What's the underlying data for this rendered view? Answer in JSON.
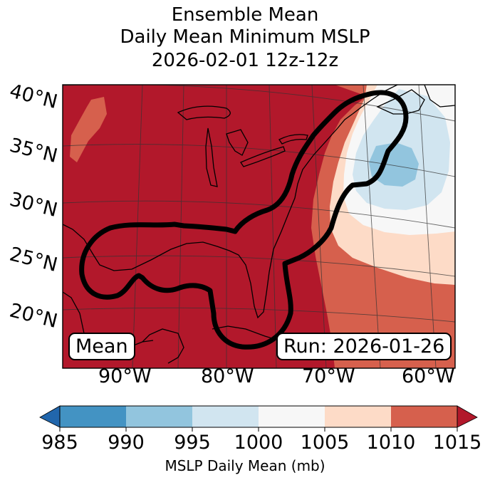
{
  "title": {
    "line1": "Ensemble Mean",
    "line2": "Daily Mean Minimum MSLP",
    "line3": "2026-02-01 12z-12z"
  },
  "map": {
    "lat_labels": [
      "40°N",
      "35°N",
      "30°N",
      "25°N",
      "20°N"
    ],
    "lon_labels": [
      "90°W",
      "80°W",
      "70°W",
      "60°W"
    ],
    "mean_box": "Mean",
    "run_box": "Run: 2026-01-26"
  },
  "colorbar": {
    "ticks": [
      "985",
      "990",
      "995",
      "1000",
      "1005",
      "1010",
      "1015"
    ],
    "label": "MSLP Daily Mean (mb)",
    "colors": [
      "#2166ac",
      "#4393c3",
      "#92c5de",
      "#d1e5f0",
      "#f7f7f7",
      "#fddbc7",
      "#d6604d",
      "#b2182b"
    ]
  }
}
